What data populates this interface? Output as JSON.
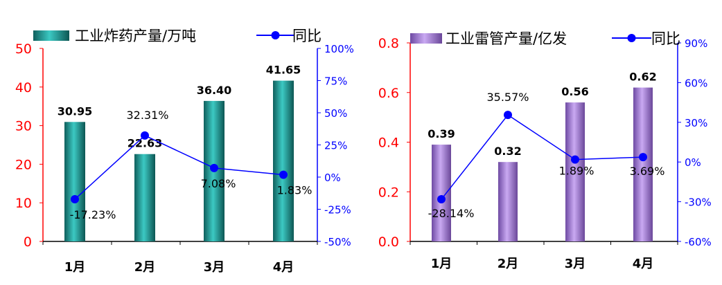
{
  "chart_data": [
    {
      "type": "bar",
      "categories": [
        "1月",
        "2月",
        "3月",
        "4月"
      ],
      "bar_series": {
        "name": "工业炸药产量/万吨",
        "values": [
          30.95,
          22.63,
          36.4,
          41.65
        ],
        "labels": [
          "30.95",
          "22.63",
          "36.40",
          "41.65"
        ],
        "color": "#1f9e9a"
      },
      "line_series": {
        "name": "同比",
        "values": [
          -17.23,
          32.31,
          7.08,
          1.83
        ],
        "labels": [
          "-17.23%",
          "32.31%",
          "7.08%",
          "1.83%"
        ],
        "color": "#0000ff"
      },
      "y_left": {
        "min": 0,
        "max": 50,
        "ticks": [
          "0",
          "10",
          "20",
          "30",
          "40",
          "50"
        ],
        "color": "#ff0000"
      },
      "y_right": {
        "min": -50,
        "max": 100,
        "ticks": [
          "-50%",
          "-25%",
          "0%",
          "25%",
          "50%",
          "75%",
          "100%"
        ],
        "color": "#0000ff"
      },
      "grid": false,
      "legend": "top"
    },
    {
      "type": "bar",
      "categories": [
        "1月",
        "2月",
        "3月",
        "4月"
      ],
      "bar_series": {
        "name": "工业雷管产量/亿发",
        "values": [
          0.39,
          0.32,
          0.56,
          0.62
        ],
        "labels": [
          "0.39",
          "0.32",
          "0.56",
          "0.62"
        ],
        "color": "#a77fdc"
      },
      "line_series": {
        "name": "同比",
        "values": [
          -28.14,
          35.57,
          1.89,
          3.69
        ],
        "labels": [
          "-28.14%",
          "35.57%",
          "1.89%",
          "3.69%"
        ],
        "color": "#0000ff"
      },
      "y_left": {
        "min": 0,
        "max": 0.8,
        "ticks": [
          "0.0",
          "0.2",
          "0.4",
          "0.6",
          "0.8"
        ],
        "color": "#ff0000"
      },
      "y_right": {
        "min": -60,
        "max": 90,
        "ticks": [
          "-60%",
          "-30%",
          "0%",
          "30%",
          "60%",
          "90%"
        ],
        "color": "#0000ff"
      },
      "grid": false,
      "legend": "top"
    }
  ]
}
